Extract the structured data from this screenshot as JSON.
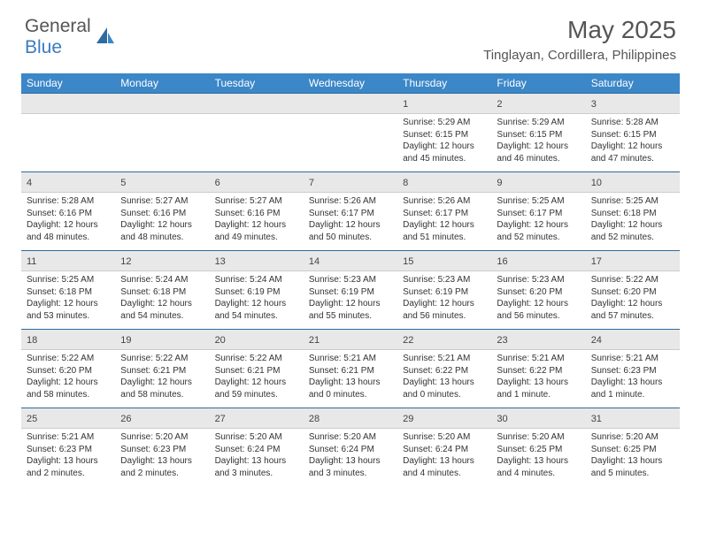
{
  "brand": {
    "part1": "General",
    "part2": "Blue"
  },
  "title": "May 2025",
  "location": "Tinglayan, Cordillera, Philippines",
  "colors": {
    "header_bg": "#3b87c8",
    "header_text": "#ffffff",
    "daynum_bg": "#e8e8e8",
    "daynum_border_top": "#2f6aa0",
    "brand_gray": "#555555",
    "brand_blue": "#3b7bbf",
    "text": "#333333"
  },
  "fonts": {
    "base": "Arial",
    "title_size": 28,
    "location_size": 15,
    "dow_size": 12,
    "daynum_size": 11,
    "detail_size": 10
  },
  "days_of_week": [
    "Sunday",
    "Monday",
    "Tuesday",
    "Wednesday",
    "Thursday",
    "Friday",
    "Saturday"
  ],
  "weeks": [
    [
      null,
      null,
      null,
      null,
      {
        "n": "1",
        "sr": "Sunrise: 5:29 AM",
        "ss": "Sunset: 6:15 PM",
        "d1": "Daylight: 12 hours",
        "d2": "and 45 minutes."
      },
      {
        "n": "2",
        "sr": "Sunrise: 5:29 AM",
        "ss": "Sunset: 6:15 PM",
        "d1": "Daylight: 12 hours",
        "d2": "and 46 minutes."
      },
      {
        "n": "3",
        "sr": "Sunrise: 5:28 AM",
        "ss": "Sunset: 6:15 PM",
        "d1": "Daylight: 12 hours",
        "d2": "and 47 minutes."
      }
    ],
    [
      {
        "n": "4",
        "sr": "Sunrise: 5:28 AM",
        "ss": "Sunset: 6:16 PM",
        "d1": "Daylight: 12 hours",
        "d2": "and 48 minutes."
      },
      {
        "n": "5",
        "sr": "Sunrise: 5:27 AM",
        "ss": "Sunset: 6:16 PM",
        "d1": "Daylight: 12 hours",
        "d2": "and 48 minutes."
      },
      {
        "n": "6",
        "sr": "Sunrise: 5:27 AM",
        "ss": "Sunset: 6:16 PM",
        "d1": "Daylight: 12 hours",
        "d2": "and 49 minutes."
      },
      {
        "n": "7",
        "sr": "Sunrise: 5:26 AM",
        "ss": "Sunset: 6:17 PM",
        "d1": "Daylight: 12 hours",
        "d2": "and 50 minutes."
      },
      {
        "n": "8",
        "sr": "Sunrise: 5:26 AM",
        "ss": "Sunset: 6:17 PM",
        "d1": "Daylight: 12 hours",
        "d2": "and 51 minutes."
      },
      {
        "n": "9",
        "sr": "Sunrise: 5:25 AM",
        "ss": "Sunset: 6:17 PM",
        "d1": "Daylight: 12 hours",
        "d2": "and 52 minutes."
      },
      {
        "n": "10",
        "sr": "Sunrise: 5:25 AM",
        "ss": "Sunset: 6:18 PM",
        "d1": "Daylight: 12 hours",
        "d2": "and 52 minutes."
      }
    ],
    [
      {
        "n": "11",
        "sr": "Sunrise: 5:25 AM",
        "ss": "Sunset: 6:18 PM",
        "d1": "Daylight: 12 hours",
        "d2": "and 53 minutes."
      },
      {
        "n": "12",
        "sr": "Sunrise: 5:24 AM",
        "ss": "Sunset: 6:18 PM",
        "d1": "Daylight: 12 hours",
        "d2": "and 54 minutes."
      },
      {
        "n": "13",
        "sr": "Sunrise: 5:24 AM",
        "ss": "Sunset: 6:19 PM",
        "d1": "Daylight: 12 hours",
        "d2": "and 54 minutes."
      },
      {
        "n": "14",
        "sr": "Sunrise: 5:23 AM",
        "ss": "Sunset: 6:19 PM",
        "d1": "Daylight: 12 hours",
        "d2": "and 55 minutes."
      },
      {
        "n": "15",
        "sr": "Sunrise: 5:23 AM",
        "ss": "Sunset: 6:19 PM",
        "d1": "Daylight: 12 hours",
        "d2": "and 56 minutes."
      },
      {
        "n": "16",
        "sr": "Sunrise: 5:23 AM",
        "ss": "Sunset: 6:20 PM",
        "d1": "Daylight: 12 hours",
        "d2": "and 56 minutes."
      },
      {
        "n": "17",
        "sr": "Sunrise: 5:22 AM",
        "ss": "Sunset: 6:20 PM",
        "d1": "Daylight: 12 hours",
        "d2": "and 57 minutes."
      }
    ],
    [
      {
        "n": "18",
        "sr": "Sunrise: 5:22 AM",
        "ss": "Sunset: 6:20 PM",
        "d1": "Daylight: 12 hours",
        "d2": "and 58 minutes."
      },
      {
        "n": "19",
        "sr": "Sunrise: 5:22 AM",
        "ss": "Sunset: 6:21 PM",
        "d1": "Daylight: 12 hours",
        "d2": "and 58 minutes."
      },
      {
        "n": "20",
        "sr": "Sunrise: 5:22 AM",
        "ss": "Sunset: 6:21 PM",
        "d1": "Daylight: 12 hours",
        "d2": "and 59 minutes."
      },
      {
        "n": "21",
        "sr": "Sunrise: 5:21 AM",
        "ss": "Sunset: 6:21 PM",
        "d1": "Daylight: 13 hours",
        "d2": "and 0 minutes."
      },
      {
        "n": "22",
        "sr": "Sunrise: 5:21 AM",
        "ss": "Sunset: 6:22 PM",
        "d1": "Daylight: 13 hours",
        "d2": "and 0 minutes."
      },
      {
        "n": "23",
        "sr": "Sunrise: 5:21 AM",
        "ss": "Sunset: 6:22 PM",
        "d1": "Daylight: 13 hours",
        "d2": "and 1 minute."
      },
      {
        "n": "24",
        "sr": "Sunrise: 5:21 AM",
        "ss": "Sunset: 6:23 PM",
        "d1": "Daylight: 13 hours",
        "d2": "and 1 minute."
      }
    ],
    [
      {
        "n": "25",
        "sr": "Sunrise: 5:21 AM",
        "ss": "Sunset: 6:23 PM",
        "d1": "Daylight: 13 hours",
        "d2": "and 2 minutes."
      },
      {
        "n": "26",
        "sr": "Sunrise: 5:20 AM",
        "ss": "Sunset: 6:23 PM",
        "d1": "Daylight: 13 hours",
        "d2": "and 2 minutes."
      },
      {
        "n": "27",
        "sr": "Sunrise: 5:20 AM",
        "ss": "Sunset: 6:24 PM",
        "d1": "Daylight: 13 hours",
        "d2": "and 3 minutes."
      },
      {
        "n": "28",
        "sr": "Sunrise: 5:20 AM",
        "ss": "Sunset: 6:24 PM",
        "d1": "Daylight: 13 hours",
        "d2": "and 3 minutes."
      },
      {
        "n": "29",
        "sr": "Sunrise: 5:20 AM",
        "ss": "Sunset: 6:24 PM",
        "d1": "Daylight: 13 hours",
        "d2": "and 4 minutes."
      },
      {
        "n": "30",
        "sr": "Sunrise: 5:20 AM",
        "ss": "Sunset: 6:25 PM",
        "d1": "Daylight: 13 hours",
        "d2": "and 4 minutes."
      },
      {
        "n": "31",
        "sr": "Sunrise: 5:20 AM",
        "ss": "Sunset: 6:25 PM",
        "d1": "Daylight: 13 hours",
        "d2": "and 5 minutes."
      }
    ]
  ]
}
